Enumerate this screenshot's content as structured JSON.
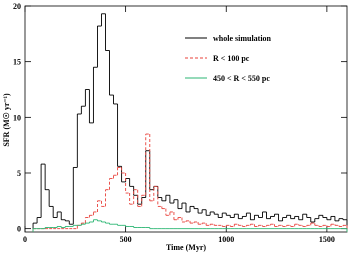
{
  "chart_data": {
    "type": "histogram",
    "xlabel": "Time (Myr)",
    "ylabel": "SFR (M☉ yr⁻¹)",
    "xlim": [
      0,
      1600
    ],
    "ylim": [
      -0.3,
      20
    ],
    "xticks": [
      0,
      500,
      1000,
      1500
    ],
    "yticks": [
      0,
      5,
      10,
      15,
      20
    ],
    "legend": "upper right",
    "bins": [
      40,
      60,
      80,
      100,
      120,
      140,
      160,
      180,
      200,
      220,
      240,
      260,
      280,
      300,
      320,
      340,
      360,
      380,
      400,
      420,
      440,
      460,
      480,
      500,
      520,
      540,
      560,
      580,
      600,
      620,
      640,
      660,
      680,
      700,
      720,
      740,
      760,
      780,
      800,
      820,
      840,
      860,
      880,
      900,
      920,
      940,
      960,
      980,
      1000,
      1020,
      1040,
      1060,
      1080,
      1100,
      1120,
      1140,
      1160,
      1180,
      1200,
      1220,
      1240,
      1260,
      1280,
      1300,
      1320,
      1340,
      1360,
      1380,
      1400,
      1420,
      1440,
      1460,
      1480,
      1500,
      1520,
      1540,
      1560,
      1580,
      1600
    ],
    "series": [
      {
        "name": "whole simulation",
        "color": "#000000",
        "linestyle": "solid",
        "values": [
          0.5,
          1.0,
          5.8,
          3.5,
          2.0,
          1.0,
          1.5,
          0.8,
          0.7,
          0.4,
          5.5,
          10.3,
          11.0,
          12.5,
          9.5,
          14.5,
          18.2,
          19.3,
          16.0,
          12.0,
          11.2,
          5.6,
          4.2,
          4.5,
          3.8,
          3.0,
          2.2,
          2.8,
          7.0,
          3.5,
          3.8,
          2.8,
          2.5,
          3.0,
          2.3,
          2.6,
          1.8,
          2.3,
          1.5,
          2.0,
          1.8,
          1.4,
          1.7,
          1.2,
          1.5,
          1.3,
          1.0,
          1.4,
          1.2,
          1.0,
          1.3,
          0.9,
          1.1,
          1.4,
          0.8,
          1.2,
          1.0,
          1.5,
          0.9,
          1.1,
          1.3,
          0.7,
          1.0,
          1.2,
          0.9,
          1.1,
          0.8,
          1.3,
          1.0,
          0.6,
          0.9,
          1.2,
          1.0,
          0.8,
          1.1,
          0.7,
          0.9,
          0.8
        ]
      },
      {
        "name": "R < 100 pc",
        "color": "#e8413a",
        "linestyle": "dashed",
        "values": [
          0,
          0,
          0,
          0,
          0,
          0,
          0,
          0,
          0,
          0,
          0,
          0.3,
          0.5,
          1.0,
          1.2,
          1.5,
          2.5,
          2.0,
          3.5,
          4.5,
          4.8,
          5.5,
          5.0,
          3.2,
          2.2,
          3.5,
          2.0,
          3.0,
          8.5,
          2.5,
          3.8,
          2.0,
          1.8,
          1.2,
          1.5,
          0.8,
          1.0,
          0.6,
          0.7,
          0.5,
          0.6,
          0.4,
          0.5,
          0.3,
          0.4,
          0.3,
          0.3,
          0.2,
          0.3,
          0.2,
          0.4,
          0.3,
          0.2,
          0.3,
          0.4,
          0.2,
          0.3,
          0.2,
          0.3,
          0.4,
          0.2,
          0.3,
          0.2,
          0.3,
          0.2,
          0.4,
          0.3,
          0.2,
          0.3,
          0.5,
          0.3,
          0.2,
          0.3,
          0.2,
          0.4,
          0.3,
          0.2,
          0.3
        ]
      },
      {
        "name": "450 < R < 550 pc",
        "color": "#2bb673",
        "linestyle": "solid",
        "values": [
          0,
          0,
          0,
          0.1,
          0.1,
          0.1,
          0.2,
          0.1,
          0.2,
          0.2,
          0.3,
          0.3,
          0.4,
          0.5,
          0.6,
          0.8,
          0.7,
          0.6,
          0.5,
          0.4,
          0.4,
          0.3,
          0.3,
          0.2,
          0.2,
          0.1,
          0.1,
          0.1,
          0.1,
          0,
          0,
          0,
          0,
          0,
          0,
          0,
          0,
          0,
          0,
          0,
          0,
          0,
          0,
          0,
          0,
          0,
          0,
          0,
          0,
          0,
          0,
          0,
          0,
          0,
          0,
          0,
          0,
          0,
          0,
          0,
          0,
          0,
          0,
          0,
          0,
          0,
          0,
          0,
          0,
          0,
          0,
          0,
          0,
          0,
          0,
          0,
          0,
          0
        ]
      }
    ]
  }
}
